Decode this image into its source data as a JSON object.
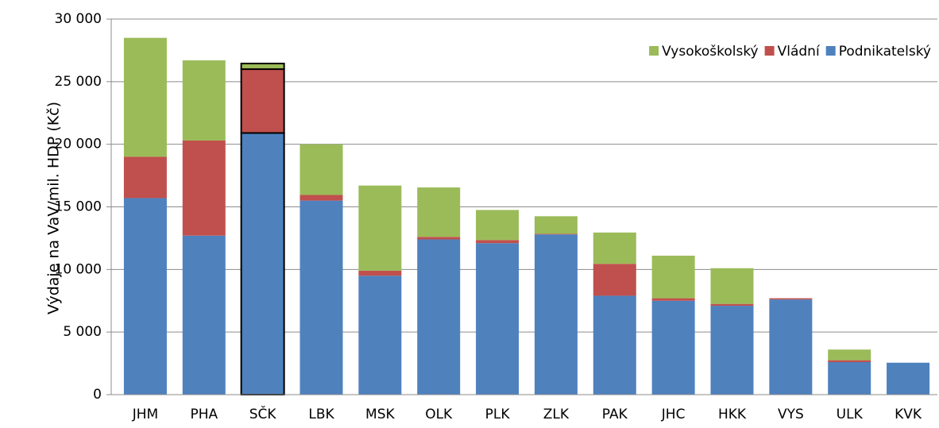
{
  "chart_data": {
    "type": "stacked_bar",
    "y_label": "Výdaje na VaV/mil. HDP (Kč)",
    "categories": [
      "JHM",
      "PHA",
      "SČK",
      "LBK",
      "MSK",
      "OLK",
      "PLK",
      "ZLK",
      "PAK",
      "JHC",
      "HKK",
      "VYS",
      "ULK",
      "KVK"
    ],
    "series": [
      {
        "name": "Podnikatelský",
        "color": "#4f81bd",
        "values": [
          15700,
          12700,
          20900,
          15500,
          9500,
          12400,
          12100,
          12800,
          7900,
          7500,
          7100,
          7600,
          2600,
          2550
        ]
      },
      {
        "name": "Vládní",
        "color": "#c0504d",
        "values": [
          3300,
          7600,
          5100,
          450,
          400,
          200,
          250,
          50,
          2550,
          200,
          150,
          100,
          150,
          0
        ]
      },
      {
        "name": "Vysokoškolský",
        "color": "#9bbb59",
        "values": [
          9500,
          6400,
          450,
          4050,
          6800,
          3950,
          2400,
          1400,
          2500,
          3400,
          2850,
          0,
          850,
          0
        ]
      }
    ],
    "highlight_category": "SČK",
    "ylim": [
      0,
      30000
    ],
    "yticks": [
      {
        "value": 0,
        "label": "0"
      },
      {
        "value": 5000,
        "label": "5 000"
      },
      {
        "value": 10000,
        "label": "10 000"
      },
      {
        "value": 15000,
        "label": "15 000"
      },
      {
        "value": 20000,
        "label": "20 000"
      },
      {
        "value": 25000,
        "label": "25 000"
      },
      {
        "value": 30000,
        "label": "30 000"
      }
    ],
    "grid": true,
    "legend": "top-right"
  }
}
